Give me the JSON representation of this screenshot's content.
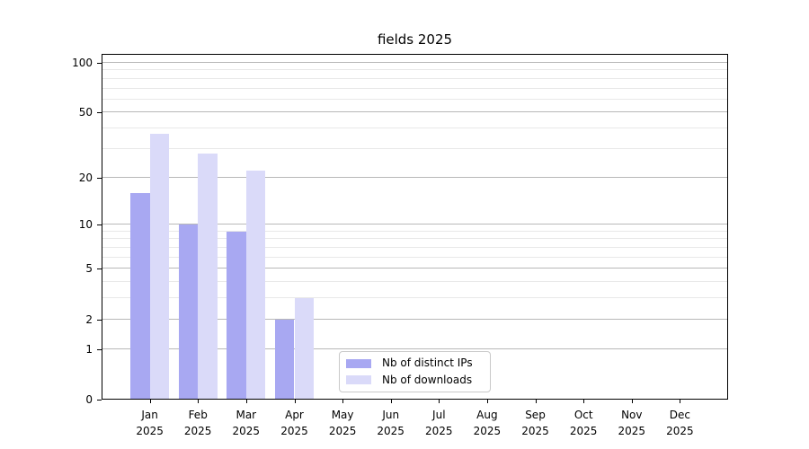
{
  "chart_data": {
    "type": "bar",
    "title": "fields 2025",
    "categories": [
      "Jan",
      "Feb",
      "Mar",
      "Apr",
      "May",
      "Jun",
      "Jul",
      "Aug",
      "Sep",
      "Oct",
      "Nov",
      "Dec"
    ],
    "category_year": "2025",
    "series": [
      {
        "name": "Nb of distinct IPs",
        "color": "#a8a8f2",
        "values": [
          16,
          10,
          9,
          2,
          0,
          0,
          0,
          0,
          0,
          0,
          0,
          0
        ]
      },
      {
        "name": "Nb of downloads",
        "color": "#dadaf9",
        "values": [
          37,
          28,
          22,
          3,
          0,
          0,
          0,
          0,
          0,
          0,
          0,
          0
        ]
      }
    ],
    "yscale": "log1p",
    "ylim": [
      0,
      113
    ],
    "yticks": [
      0,
      1,
      2,
      5,
      10,
      20,
      50,
      100
    ],
    "yticks_minor": [
      3,
      4,
      6,
      7,
      8,
      9,
      30,
      40,
      60,
      70,
      80,
      90
    ],
    "grid": true,
    "legend_position": "lower center",
    "colors": {
      "grid_major": "#b8b8b8",
      "grid_minor": "#e8e8e8",
      "axis": "#000000",
      "background": "#ffffff"
    }
  }
}
